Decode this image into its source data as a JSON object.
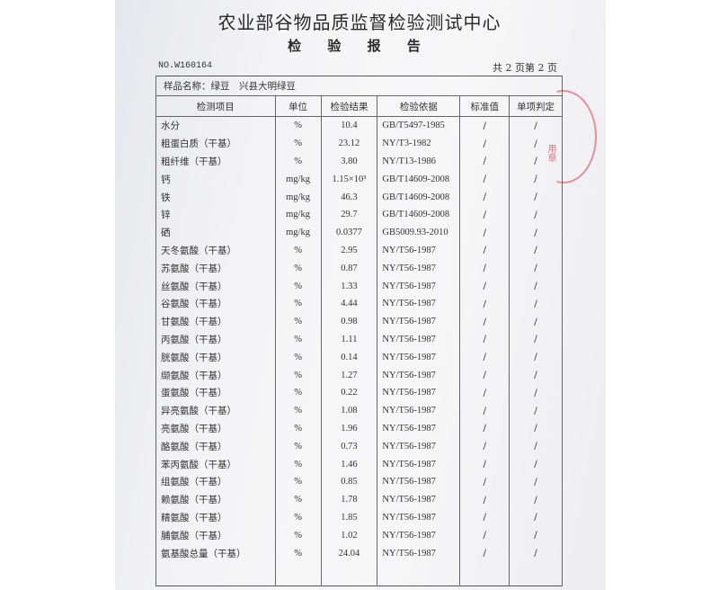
{
  "header": {
    "title": "农业部谷物品质监督检验测试中心",
    "subtitle": "检 验 报 告",
    "report_no": "NO.W160164",
    "pages": "共 2 页第 2 页"
  },
  "sample": {
    "label": "样品名称：",
    "value": "绿豆　兴县大明绿豆"
  },
  "columns": [
    "检测项目",
    "单位",
    "检验结果",
    "检验依据",
    "标准值",
    "单项判定"
  ],
  "rows": [
    [
      "水分",
      "%",
      "10.4",
      "GB/T5497-1985",
      "/",
      "/"
    ],
    [
      "粗蛋白质（干基）",
      "%",
      "23.12",
      "NY/T3-1982",
      "/",
      "/"
    ],
    [
      "粗纤维（干基）",
      "%",
      "3.80",
      "NY/T13-1986",
      "/",
      "/"
    ],
    [
      "钙",
      "mg/kg",
      "1.15×10³",
      "GB/T14609-2008",
      "/",
      "/"
    ],
    [
      "铁",
      "mg/kg",
      "46.3",
      "GB/T14609-2008",
      "/",
      "/"
    ],
    [
      "锌",
      "mg/kg",
      "29.7",
      "GB/T14609-2008",
      "/",
      "/"
    ],
    [
      "硒",
      "mg/kg",
      "0.0377",
      "GB5009.93-2010",
      "/",
      "/"
    ],
    [
      "天冬氨酸（干基）",
      "%",
      "2.95",
      "NY/T56-1987",
      "/",
      "/"
    ],
    [
      "苏氨酸（干基）",
      "%",
      "0.87",
      "NY/T56-1987",
      "/",
      "/"
    ],
    [
      "丝氨酸（干基）",
      "%",
      "1.33",
      "NY/T56-1987",
      "/",
      "/"
    ],
    [
      "谷氨酸（干基）",
      "%",
      "4.44",
      "NY/T56-1987",
      "/",
      "/"
    ],
    [
      "甘氨酸（干基）",
      "%",
      "0.98",
      "NY/T56-1987",
      "/",
      "/"
    ],
    [
      "丙氨酸（干基）",
      "%",
      "1.11",
      "NY/T56-1987",
      "/",
      "/"
    ],
    [
      "胱氨酸（干基）",
      "%",
      "0.14",
      "NY/T56-1987",
      "/",
      "/"
    ],
    [
      "缬氨酸（干基）",
      "%",
      "1.27",
      "NY/T56-1987",
      "/",
      "/"
    ],
    [
      "蛋氨酸（干基）",
      "%",
      "0.22",
      "NY/T56-1987",
      "/",
      "/"
    ],
    [
      "异亮氨酸（干基）",
      "%",
      "1.08",
      "NY/T56-1987",
      "/",
      "/"
    ],
    [
      "亮氨酸（干基）",
      "%",
      "1.96",
      "NY/T56-1987",
      "/",
      "/"
    ],
    [
      "酪氨酸（干基）",
      "%",
      "0.73",
      "NY/T56-1987",
      "/",
      "/"
    ],
    [
      "苯丙氨酸（干基）",
      "%",
      "1.46",
      "NY/T56-1987",
      "/",
      "/"
    ],
    [
      "组氨酸（干基）",
      "%",
      "0.85",
      "NY/T56-1987",
      "/",
      "/"
    ],
    [
      "赖氨酸（干基）",
      "%",
      "1.78",
      "NY/T56-1987",
      "/",
      "/"
    ],
    [
      "精氨酸（干基）",
      "%",
      "1.85",
      "NY/T56-1987",
      "/",
      "/"
    ],
    [
      "脯氨酸（干基）",
      "%",
      "1.02",
      "NY/T56-1987",
      "/",
      "/"
    ],
    [
      "氨基酸总量（干基）",
      "%",
      "24.04",
      "NY/T56-1987",
      "/",
      "/"
    ]
  ],
  "stamp": {
    "text": "用章",
    "color": "#dc3c50"
  }
}
